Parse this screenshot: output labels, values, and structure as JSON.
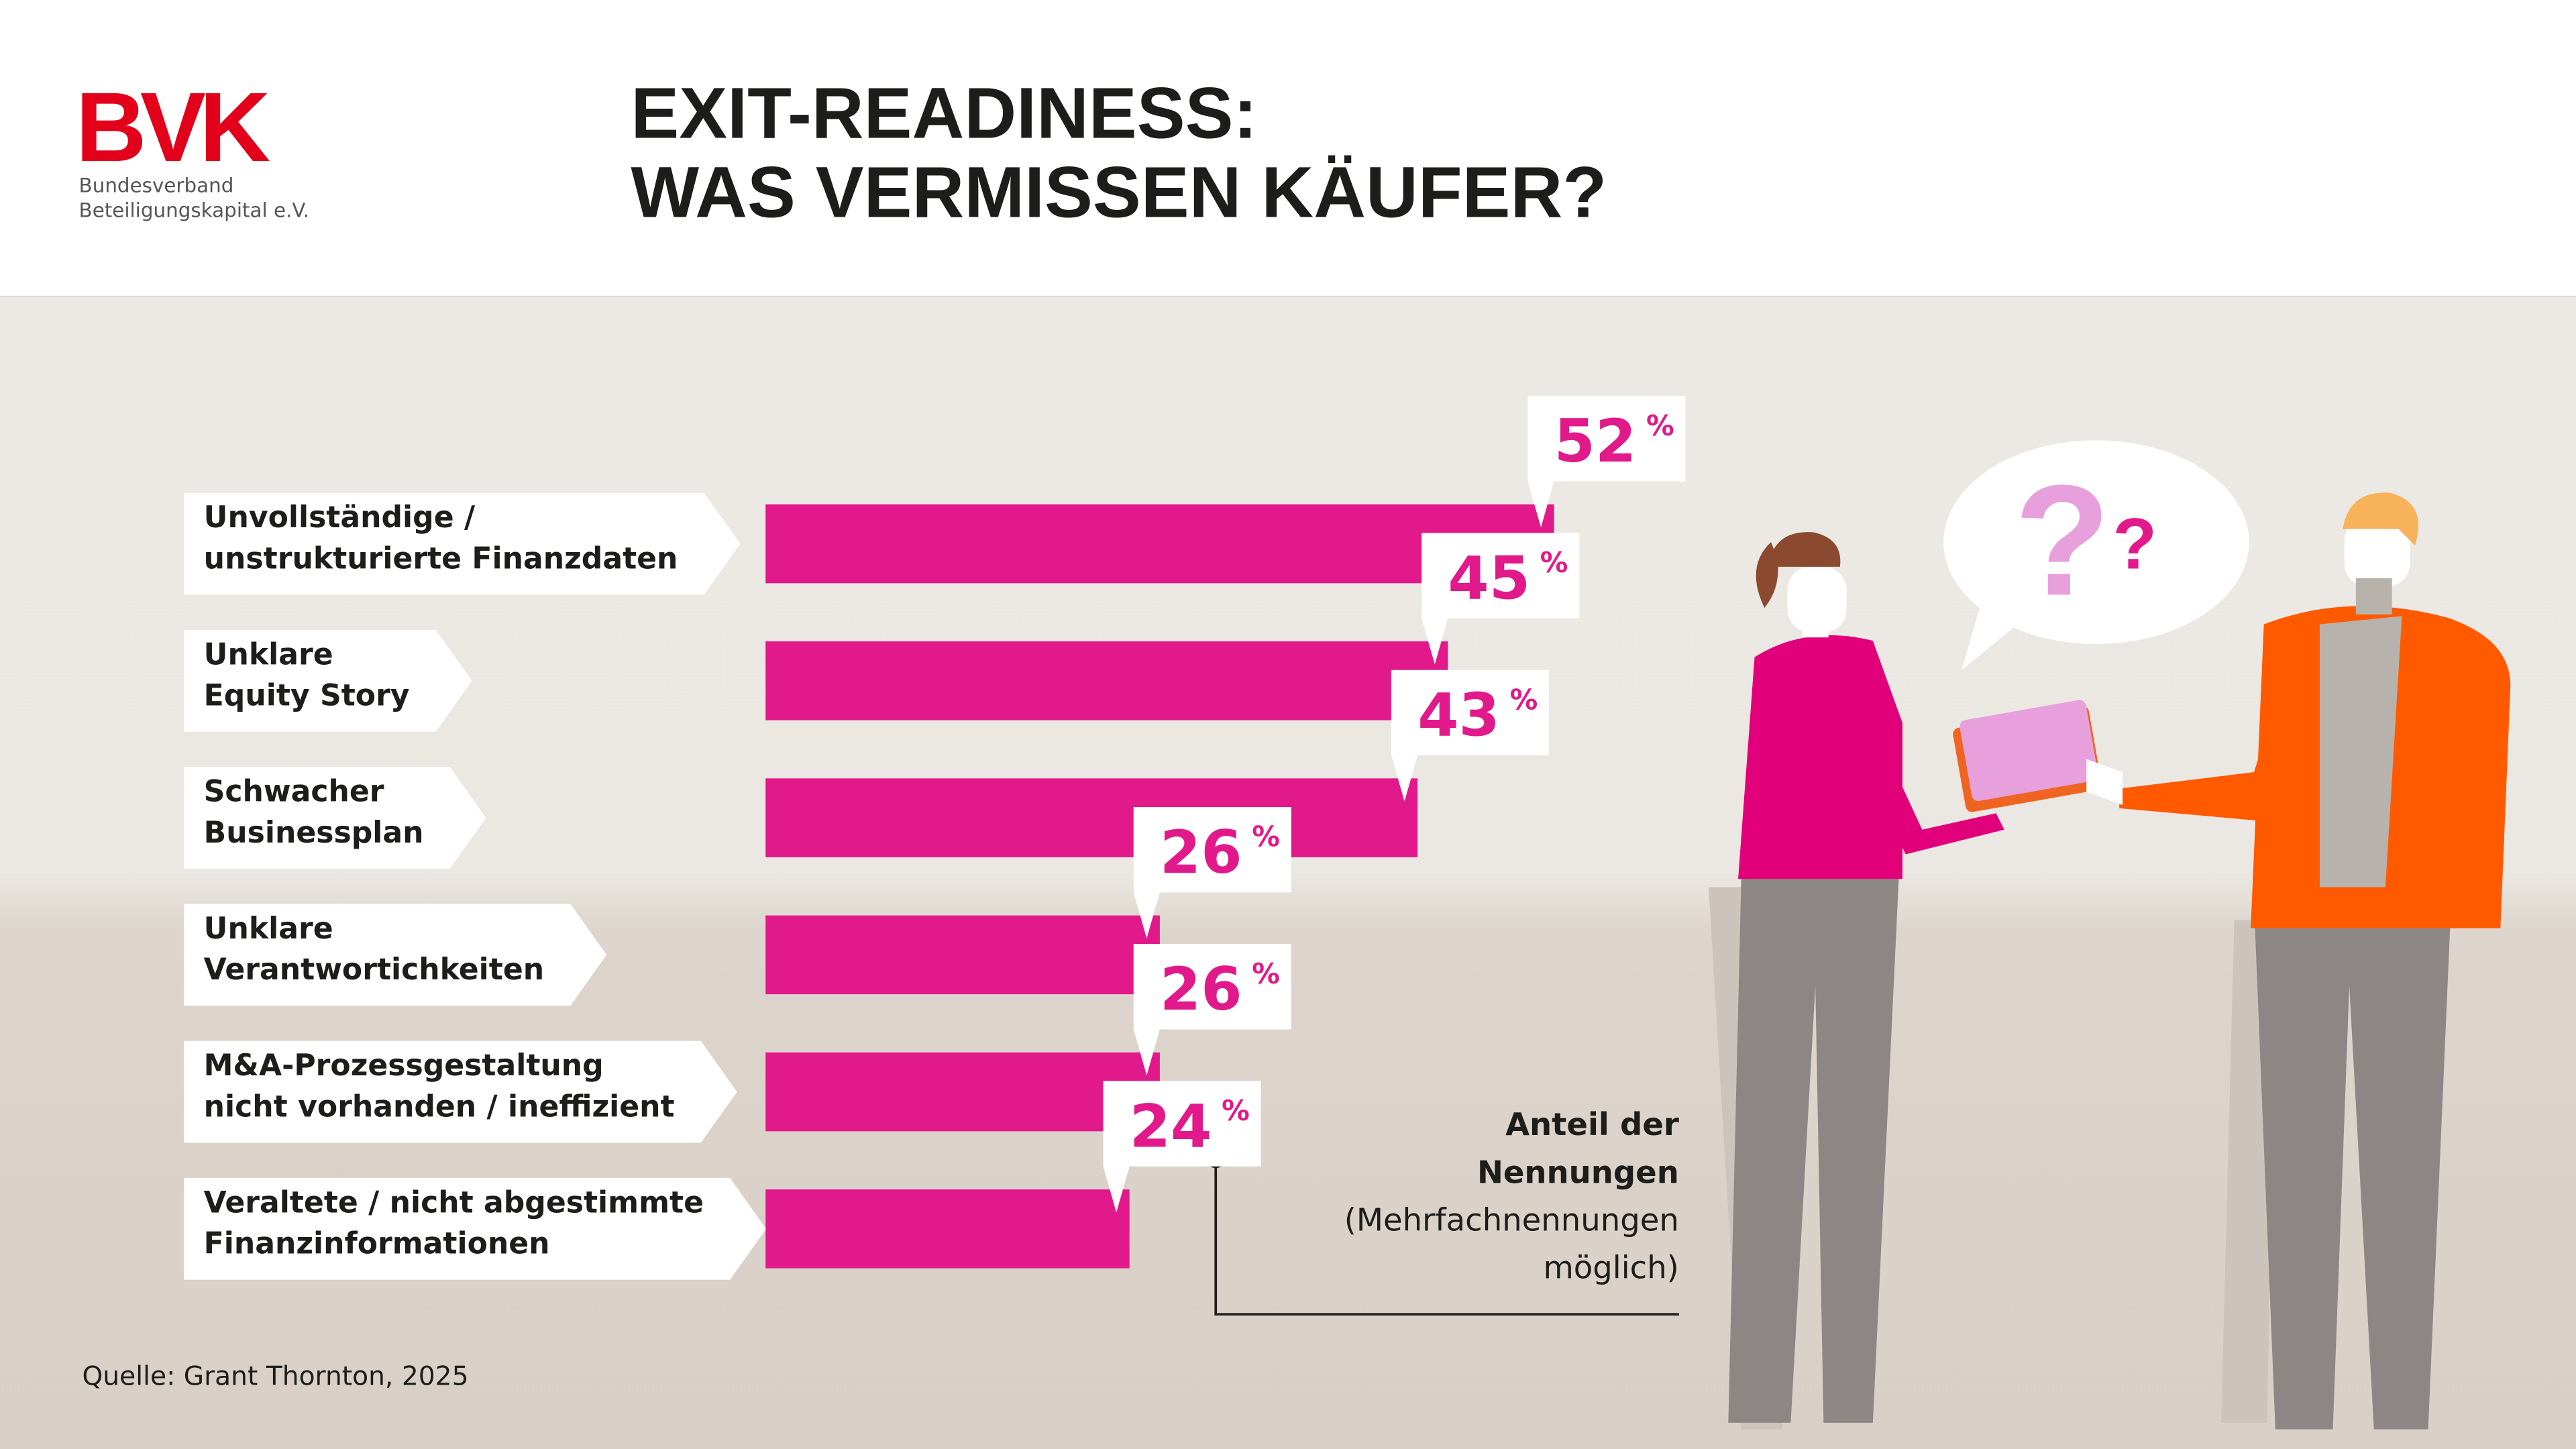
{
  "logo": {
    "text": "BVK",
    "line1": "Bundesverband",
    "line2": "Beteiligungskapital e.V."
  },
  "chart_data": {
    "type": "bar",
    "orientation": "horizontal",
    "title": [
      "EXIT-READINESS:",
      "WAS VERMISSEN KÄUFER?"
    ],
    "categories": [
      [
        "Unvollständige /",
        "unstrukturierte Finanzdaten"
      ],
      [
        "Unklare",
        "Equity Story"
      ],
      [
        "Schwacher",
        "Businessplan"
      ],
      [
        "Unklare",
        "Verantwortichkeiten"
      ],
      [
        "M&A-Prozessgestaltung",
        "nicht vorhanden / ineffizient"
      ],
      [
        "Veraltete / nicht abgestimmte",
        "Finanzinformationen"
      ]
    ],
    "values": [
      52,
      45,
      43,
      26,
      26,
      24
    ],
    "unit": "%",
    "color": "#e2198a",
    "note": [
      "Anteil der",
      "Nennungen",
      "(Mehrfachnennungen",
      "möglich)"
    ],
    "source": "Quelle: Grant Thornton, 2025"
  }
}
